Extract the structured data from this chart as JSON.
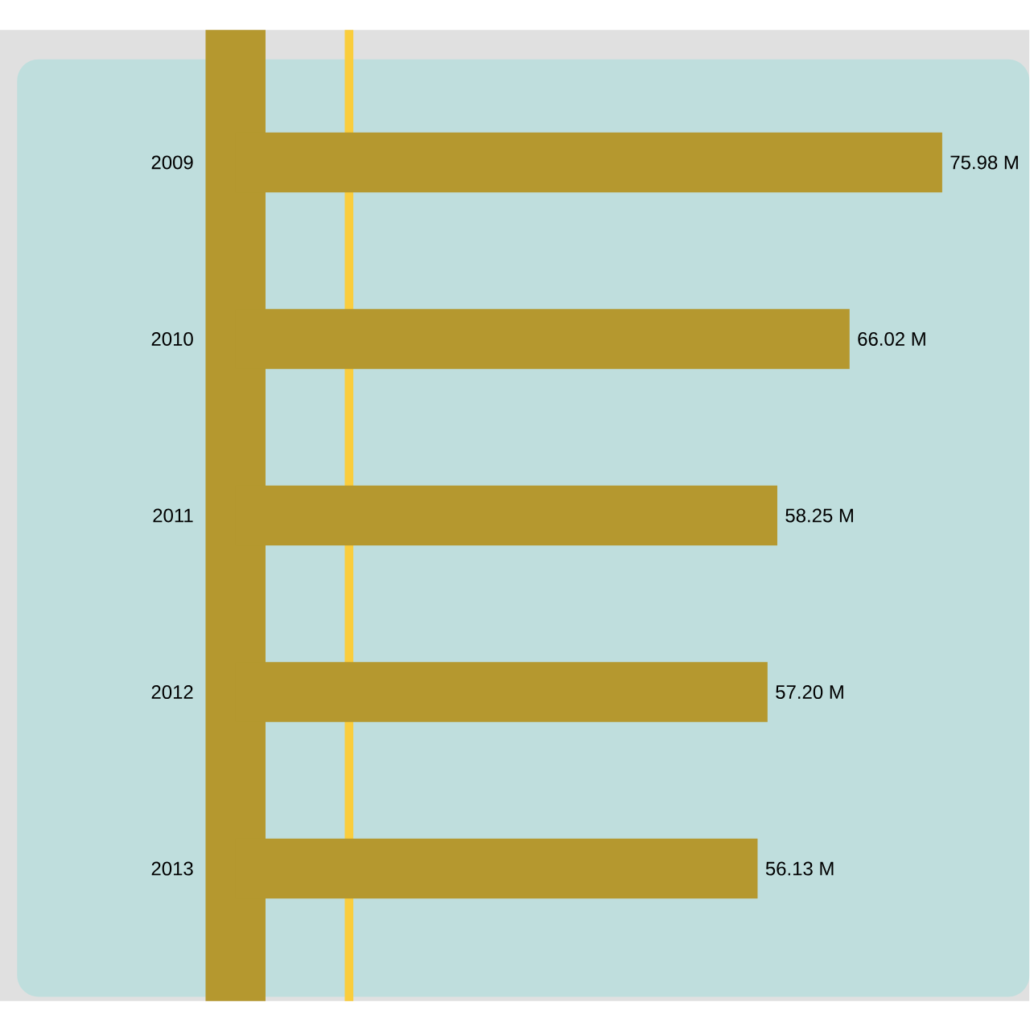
{
  "chart_data": {
    "type": "bar",
    "orientation": "horizontal",
    "categories": [
      "2009",
      "2010",
      "2011",
      "2012",
      "2013"
    ],
    "values": [
      75.98,
      66.02,
      58.25,
      57.2,
      56.13
    ],
    "value_labels": [
      "75.98 M",
      "66.02 M",
      "58.25 M",
      "57.20 M",
      "56.13 M"
    ],
    "color": "#b5982f"
  }
}
